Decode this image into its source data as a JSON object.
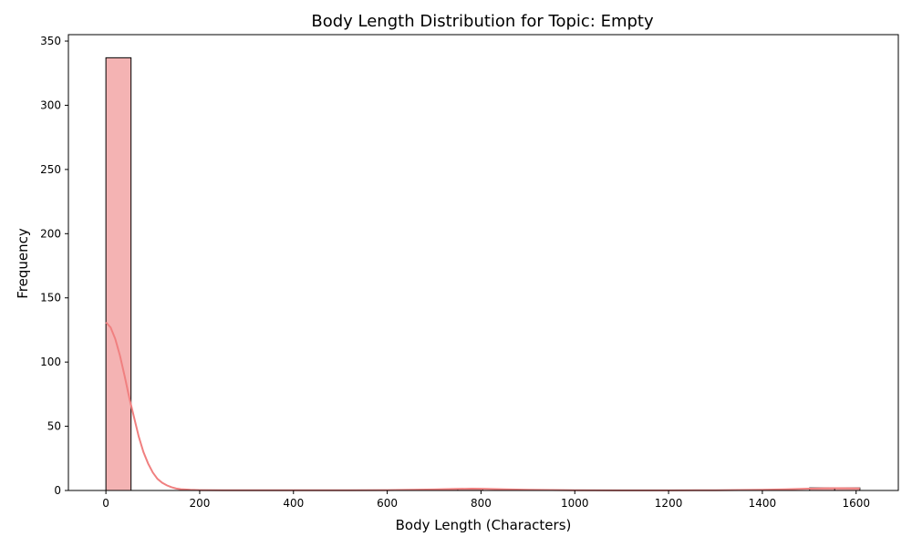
{
  "chart_data": {
    "type": "bar",
    "title": "Body Length Distribution for Topic: Empty",
    "xlabel": "Body Length (Characters)",
    "ylabel": "Frequency",
    "xlim": [
      -80,
      1690
    ],
    "ylim": [
      0,
      355
    ],
    "xticks": [
      0,
      200,
      400,
      600,
      800,
      1000,
      1200,
      1400,
      1600
    ],
    "yticks": [
      0,
      50,
      100,
      150,
      200,
      250,
      300,
      350
    ],
    "bin_width": 53.6,
    "bins": [
      {
        "x0": 0,
        "x1": 53.6,
        "count": 337
      },
      {
        "x0": 696.8,
        "x1": 750.4,
        "count": 1
      },
      {
        "x0": 750.4,
        "x1": 804.0,
        "count": 1
      },
      {
        "x0": 1500.8,
        "x1": 1554.4,
        "count": 2
      },
      {
        "x0": 1554.4,
        "x1": 1608.0,
        "count": 2
      }
    ],
    "kde": {
      "x": [
        0,
        10,
        20,
        30,
        40,
        50,
        60,
        70,
        80,
        90,
        100,
        110,
        120,
        130,
        140,
        150,
        160,
        180,
        200,
        250,
        300,
        400,
        500,
        600,
        650,
        700,
        750,
        780,
        800,
        850,
        900,
        1000,
        1100,
        1200,
        1300,
        1400,
        1450,
        1500,
        1530,
        1560,
        1590,
        1608
      ],
      "y": [
        131,
        127,
        118,
        105,
        89,
        72,
        57,
        42,
        30,
        21,
        14,
        9,
        6,
        4,
        2.5,
        1.5,
        1,
        0.5,
        0.3,
        0.2,
        0.2,
        0.2,
        0.2,
        0.3,
        0.5,
        0.8,
        1.2,
        1.4,
        1.3,
        0.9,
        0.5,
        0.2,
        0.1,
        0.1,
        0.2,
        0.5,
        0.9,
        1.4,
        1.7,
        1.8,
        1.7,
        1.6
      ]
    },
    "bar_fill": "#f4b3b3",
    "bar_stroke": "#000000",
    "kde_color": "#f08080",
    "grid": false,
    "legend": "none"
  }
}
